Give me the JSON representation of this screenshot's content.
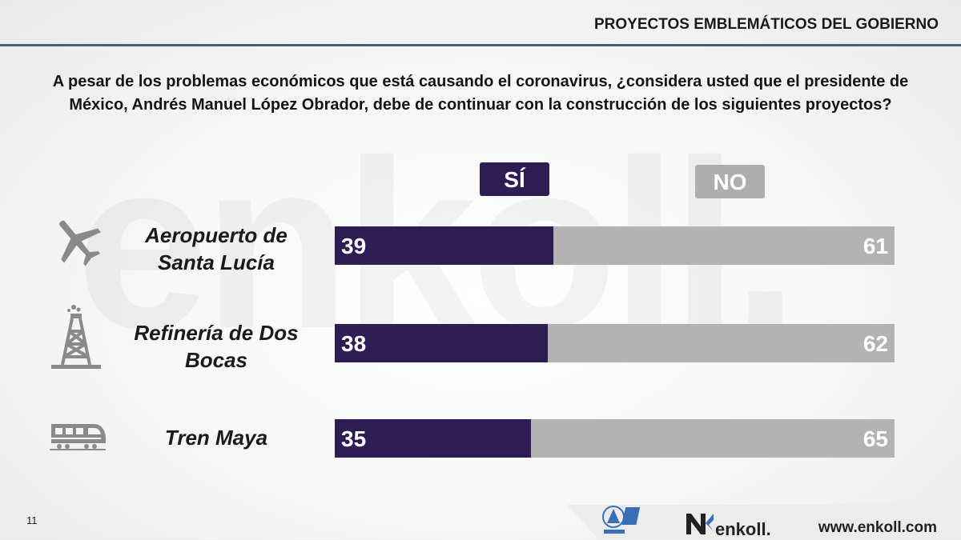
{
  "header": {
    "title": "PROYECTOS EMBLEMÁTICOS DEL GOBIERNO"
  },
  "question": "A pesar de los problemas económicos que está causando el coronavirus, ¿considera usted que el presidente de México, Andrés Manuel López Obrador, debe de continuar con la construcción de los siguientes proyectos?",
  "watermark": "enkoll.",
  "colors": {
    "si": "#2e1c55",
    "no": "#b3b3b3"
  },
  "chart_data": {
    "type": "bar",
    "stacked": true,
    "orientation": "horizontal",
    "categories": [
      "Aeropuerto de Santa Lucía",
      "Refinería de Dos Bocas",
      "Tren Maya"
    ],
    "series": [
      {
        "name": "SÍ",
        "values": [
          39,
          38,
          35
        ]
      },
      {
        "name": "NO",
        "values": [
          61,
          62,
          65
        ]
      }
    ],
    "xlim": [
      0,
      100
    ],
    "grid": false,
    "legend": "top"
  },
  "rows": [
    {
      "line1": "Aeropuerto de",
      "line2": "Santa Lucía",
      "icon": "airplane-icon"
    },
    {
      "line1": "Refinería de Dos",
      "line2": "Bocas",
      "icon": "oil-rig-icon"
    },
    {
      "line1": "Tren Maya",
      "line2": "",
      "icon": "train-icon"
    }
  ],
  "footer": {
    "page_number": "11",
    "brand": "enkoll.",
    "url": "www.enkoll.com",
    "partner_logo": "AMAI"
  }
}
